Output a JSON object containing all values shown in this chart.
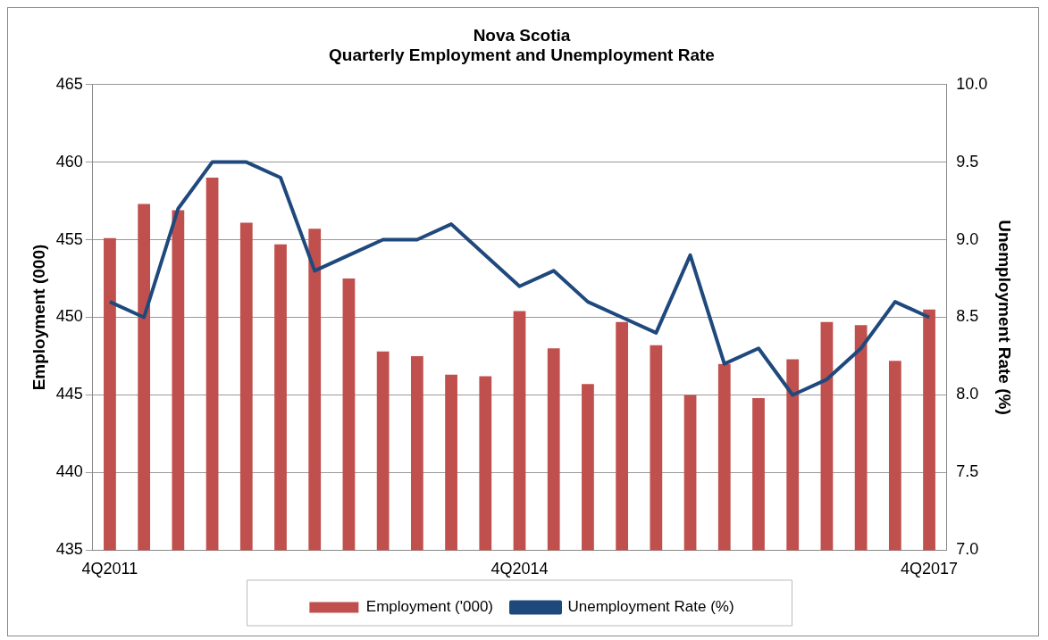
{
  "chart_data": {
    "type": "bar",
    "title": "Nova Scotia\nQuarterly Employment and Unemployment Rate",
    "categories": [
      "4Q2011",
      null,
      null,
      null,
      null,
      null,
      null,
      null,
      null,
      null,
      null,
      null,
      "4Q2014",
      null,
      null,
      null,
      null,
      null,
      null,
      null,
      null,
      null,
      null,
      null,
      "4Q2017"
    ],
    "series": [
      {
        "name": "Employment ('000)",
        "color": "#c0504d",
        "values": [
          455.1,
          457.3,
          456.9,
          459.0,
          456.1,
          454.7,
          455.7,
          452.5,
          447.8,
          447.5,
          446.3,
          446.2,
          450.4,
          448.0,
          445.7,
          449.7,
          448.2,
          445.0,
          447.0,
          444.8,
          447.3,
          449.7,
          449.5,
          447.2,
          450.5
        ]
      },
      {
        "name": "Unemployment Rate (%)",
        "type": "line",
        "axis": "y2",
        "color": "#1f497d",
        "values": [
          8.6,
          8.5,
          9.2,
          9.5,
          9.5,
          9.4,
          8.8,
          8.9,
          9.0,
          9.0,
          9.1,
          8.9,
          8.7,
          8.8,
          8.6,
          8.5,
          8.4,
          8.9,
          8.2,
          8.3,
          8.0,
          8.1,
          8.3,
          8.6,
          8.5
        ]
      }
    ],
    "ylabel": "Employment (000)",
    "y2label": "Unemployment Rate (%)",
    "ylim": [
      435,
      465
    ],
    "yticks": [
      435,
      440,
      445,
      450,
      455,
      460,
      465
    ],
    "y2lim": [
      7.0,
      10.0
    ],
    "y2ticks": [
      {
        "value": 7,
        "label": "7.0"
      },
      {
        "value": 7.5,
        "label": "7.5"
      },
      {
        "value": 8,
        "label": "8.0"
      },
      {
        "value": 8.5,
        "label": "8.5"
      },
      {
        "value": 9,
        "label": "9.0"
      },
      {
        "value": 9.5,
        "label": "9.5"
      },
      {
        "value": 10,
        "label": "10.0"
      }
    ],
    "grid": "y",
    "legend": "bottom",
    "marker": "none",
    "line_style": "solid"
  }
}
